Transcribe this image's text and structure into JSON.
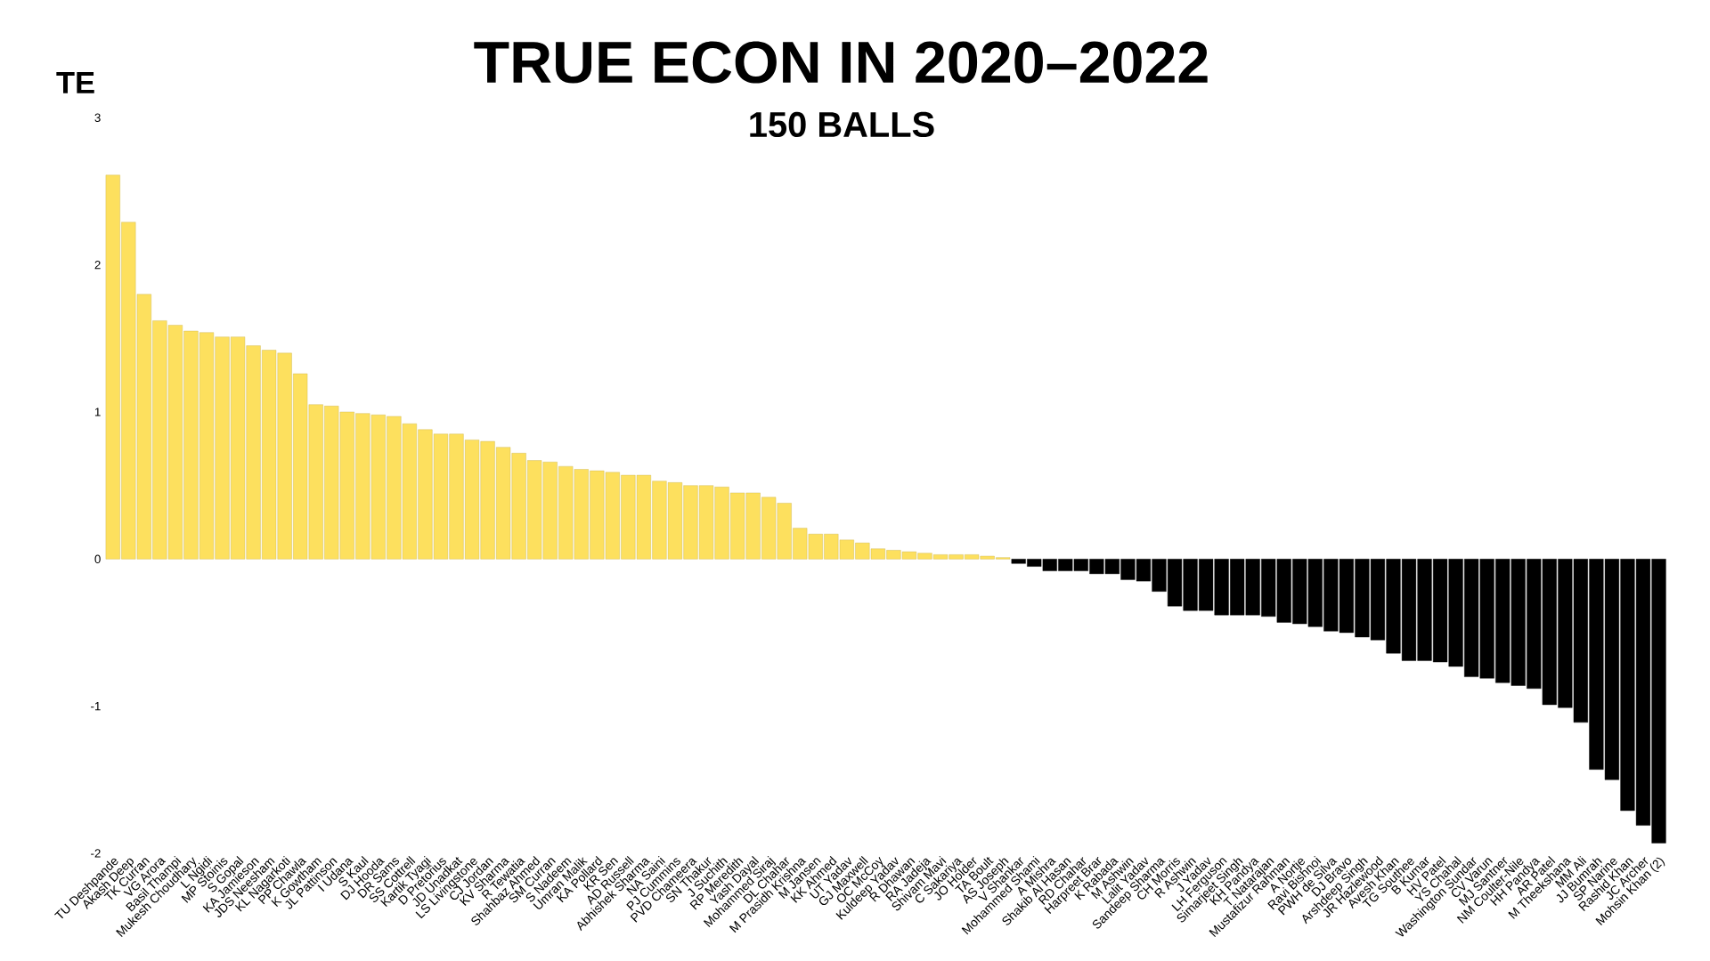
{
  "chart_data": {
    "type": "bar",
    "title": "TRUE ECON IN 2020–2022",
    "subtitle": "150 BALLS",
    "ylabel": "TE",
    "categories": [
      "TU Deshpande",
      "Akash Deep",
      "TK Curran",
      "VG Arora",
      "Basil Thampi",
      "Mukesh Choudhary",
      "L Ngidi",
      "MP Stoinis",
      "S Gopal",
      "KA Jamieson",
      "JDS Neesham",
      "KL Nagarkoti",
      "PP Chawla",
      "K Gowtham",
      "JL Pattinson",
      "I Udana",
      "S Kaul",
      "DJ Hooda",
      "DR Sams",
      "SS Cottrell",
      "Kartik Tyagi",
      "D Pretorius",
      "JD Unadkat",
      "LS Livingstone",
      "CJ Jordan",
      "KV Sharma",
      "R Tewatia",
      "Shahbaz Ahmed",
      "SM Curran",
      "S Nadeem",
      "Umran Malik",
      "KA Pollard",
      "KR Sen",
      "AD Russell",
      "Abhishek Sharma",
      "NA Saini",
      "PJ Cummins",
      "PVD Chameera",
      "SN Thakur",
      "J Suchith",
      "RP Meredith",
      "Yash Dayal",
      "Mohammed Siraj",
      "DL Chahar",
      "M Prasidh Krishna",
      "M Jansen",
      "KK Ahmed",
      "UT Yadav",
      "GJ Maxwell",
      "OC McCoy",
      "Kuldeep Yadav",
      "R Dhawan",
      "RA Jadeja",
      "Shivam Mavi",
      "C Sakariya",
      "JO Holder",
      "TA Boult",
      "AS Joseph",
      "V Shankar",
      "Mohammed Shami",
      "A Mishra",
      "Shakib Al Hasan",
      "RD Chahar",
      "Harpreet Brar",
      "K Rabada",
      "M Ashwin",
      "Lalit Yadav",
      "Sandeep Sharma",
      "CH Morris",
      "R Ashwin",
      "J Yadav",
      "LH Ferguson",
      "Simarjeet Singh",
      "KH Pandya",
      "T Natarajan",
      "Mustafizur Rahman",
      "A Nortje",
      "Ravi Bishnoi",
      "PWH de Silva",
      "DJ Bravo",
      "Arshdeep Singh",
      "JR Hazlewood",
      "Avesh Khan",
      "TG Southee",
      "B Kumar",
      "HV Patel",
      "YS Chahal",
      "Washington Sundar",
      "CV Varun",
      "MJ Santner",
      "NM Coulter-Nile",
      "HH Pandya",
      "AR Patel",
      "M Theekshana",
      "MM Ali",
      "JJ Bumrah",
      "SP Narine",
      "Rashid Khan",
      "JC Archer",
      "Mohsin Khan (2)"
    ],
    "values": [
      2.61,
      2.29,
      1.8,
      1.62,
      1.59,
      1.55,
      1.54,
      1.51,
      1.51,
      1.45,
      1.42,
      1.4,
      1.26,
      1.05,
      1.04,
      1.0,
      0.99,
      0.98,
      0.97,
      0.92,
      0.88,
      0.85,
      0.85,
      0.81,
      0.8,
      0.76,
      0.72,
      0.67,
      0.66,
      0.63,
      0.61,
      0.6,
      0.59,
      0.57,
      0.57,
      0.53,
      0.52,
      0.5,
      0.5,
      0.49,
      0.45,
      0.45,
      0.42,
      0.38,
      0.21,
      0.17,
      0.17,
      0.13,
      0.11,
      0.07,
      0.06,
      0.05,
      0.04,
      0.03,
      0.03,
      0.03,
      0.02,
      0.01,
      -0.03,
      -0.05,
      -0.08,
      -0.08,
      -0.08,
      -0.1,
      -0.1,
      -0.14,
      -0.15,
      -0.22,
      -0.32,
      -0.35,
      -0.35,
      -0.38,
      -0.38,
      -0.38,
      -0.39,
      -0.43,
      -0.44,
      -0.46,
      -0.49,
      -0.5,
      -0.53,
      -0.55,
      -0.64,
      -0.69,
      -0.69,
      -0.7,
      -0.73,
      -0.8,
      -0.81,
      -0.84,
      -0.86,
      -0.88,
      -0.99,
      -1.01,
      -1.11,
      -1.43,
      -1.5,
      -1.71,
      -1.81,
      -1.93
    ],
    "colors": [
      "#fde05e",
      "#fde05e",
      "#fde05e",
      "#fde05e",
      "#fde05e",
      "#fde05e",
      "#fde05e",
      "#fde05e",
      "#fde05e",
      "#fde05e",
      "#fde05e",
      "#fde05e",
      "#fde05e",
      "#fde05e",
      "#fde05e",
      "#fde05e",
      "#fde05e",
      "#fde05e",
      "#fde05e",
      "#fde05e",
      "#fde05e",
      "#fde05e",
      "#fde05e",
      "#fde05e",
      "#fde05e",
      "#fde05e",
      "#fde05e",
      "#fde05e",
      "#fde05e",
      "#fde05e",
      "#fde05e",
      "#fde05e",
      "#fde05e",
      "#fde05e",
      "#fde05e",
      "#fde05e",
      "#fde05e",
      "#fde05e",
      "#fde05e",
      "#fde05e",
      "#fde05e",
      "#fde05e",
      "#fde05e",
      "#fde05e",
      "#fde05e",
      "#fde05e",
      "#fde05e",
      "#fde05e",
      "#fde05e",
      "#fde05e",
      "#fde05e",
      "#fde05e",
      "#fde05e",
      "#fde05e",
      "#fde05e",
      "#fde05e",
      "#fde05e",
      "#fde05e",
      "#000000",
      "#000000",
      "#000000",
      "#000000",
      "#000000",
      "#000000",
      "#000000",
      "#000000",
      "#000000",
      "#000000",
      "#000000",
      "#000000",
      "#000000",
      "#000000",
      "#000000",
      "#000000",
      "#000000",
      "#000000",
      "#000000",
      "#000000",
      "#000000",
      "#000000",
      "#000000",
      "#000000",
      "#000000",
      "#000000",
      "#000000",
      "#000000",
      "#000000",
      "#000000",
      "#000000",
      "#000000",
      "#000000",
      "#000000",
      "#000000",
      "#000000",
      "#000000",
      "#000000",
      "#000000",
      "#000000",
      "#000000",
      "#000000"
    ],
    "ylim": [
      -2,
      3
    ],
    "yticks": [
      -2,
      -1,
      0,
      1,
      2,
      3
    ]
  }
}
